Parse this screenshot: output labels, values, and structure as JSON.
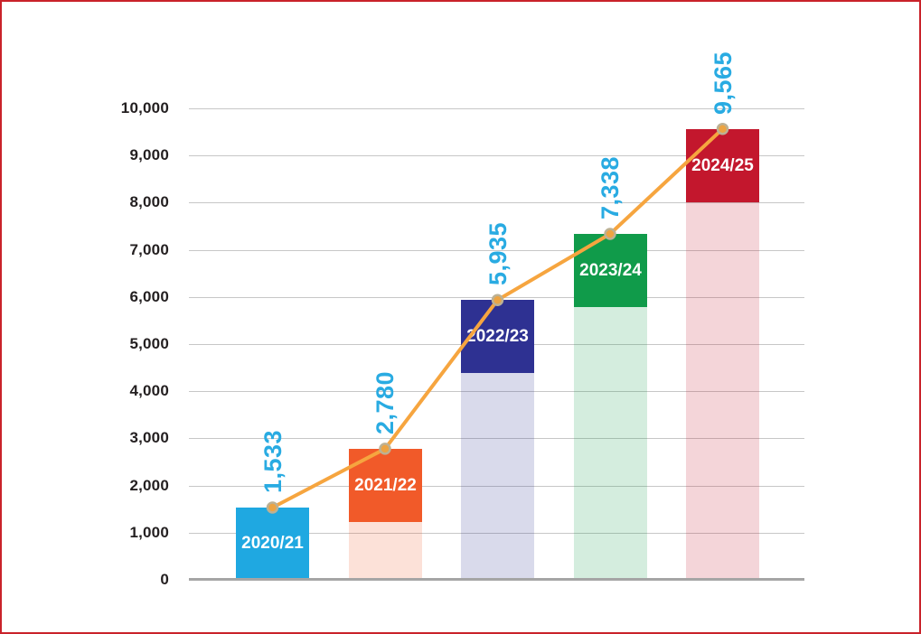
{
  "frame": {
    "border_color": "#C9222A",
    "background_color": "#FFFFFF"
  },
  "chart_data": {
    "type": "bar",
    "subtype": "bar-with-trend-line",
    "title": "",
    "xlabel": "",
    "ylabel": "",
    "categories": [
      "2020/21",
      "2021/22",
      "2022/23",
      "2023/24",
      "2024/25"
    ],
    "values": [
      1533,
      2780,
      5935,
      7338,
      9565
    ],
    "value_labels": [
      "1,533",
      "2,780",
      "5,935",
      "7,338",
      "9,565"
    ],
    "series": [
      {
        "name": "yearly-total-bars",
        "type": "bar",
        "values": [
          1533,
          2780,
          5935,
          7338,
          9565
        ]
      },
      {
        "name": "trend-line",
        "type": "line",
        "values": [
          1533,
          2780,
          5935,
          7338,
          9565
        ]
      }
    ],
    "ylim": [
      0,
      10000
    ],
    "ytick_interval": 1000,
    "ytick_labels": [
      "0",
      "1,000",
      "2,000",
      "3,000",
      "4,000",
      "5,000",
      "6,000",
      "7,000",
      "8,000",
      "9,000",
      "10,000"
    ],
    "grid": "horizontal",
    "legend": "none",
    "bar_colors": [
      "#1FA8E1",
      "#F15A29",
      "#2E3192",
      "#109B4A",
      "#C3172D"
    ],
    "bar_faded_opacity": 0.18,
    "bar_label_color": "#FFFFFF",
    "value_label_color": "#29ABE2",
    "ytick_label_color": "#231F20",
    "gridline_color": "#C7C7C7",
    "axis_line_color": "#A5A5A5",
    "line_style": {
      "color": "#F6A53F",
      "width": 4,
      "marker": "circle",
      "marker_fill": "#ECA443",
      "marker_stroke": "#BCB194"
    }
  }
}
